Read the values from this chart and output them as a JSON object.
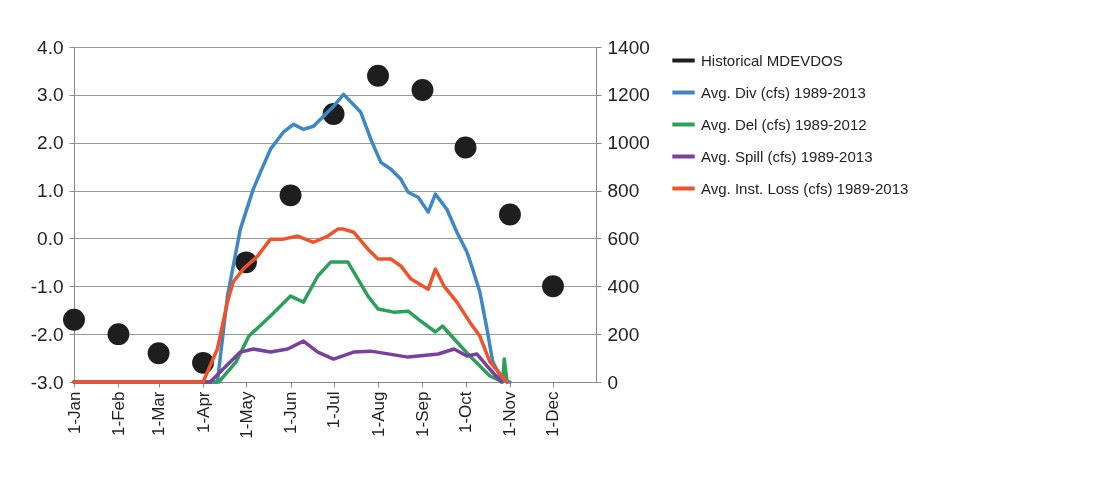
{
  "chart_data": {
    "type": "line",
    "x": [
      "--01-01",
      "--02-01",
      "--03-01",
      "--04-01",
      "--05-01",
      "--06-01",
      "--07-01",
      "--08-01",
      "--09-01",
      "--10-01",
      "--11-01",
      "--12-01"
    ],
    "xlim": [
      "--01-01",
      "--12-31"
    ],
    "xticks": [
      {
        "value": "--01-01",
        "label": "1-Jan"
      },
      {
        "value": "--02-01",
        "label": "1-Feb"
      },
      {
        "value": "--03-01",
        "label": "1-Mar"
      },
      {
        "value": "--04-01",
        "label": "1-Apr"
      },
      {
        "value": "--05-01",
        "label": "1-May"
      },
      {
        "value": "--06-01",
        "label": "1-Jun"
      },
      {
        "value": "--07-01",
        "label": "1-Jul"
      },
      {
        "value": "--08-01",
        "label": "1-Aug"
      },
      {
        "value": "--09-01",
        "label": "1-Sep"
      },
      {
        "value": "--10-01",
        "label": "1-Oct"
      },
      {
        "value": "--11-01",
        "label": "1-Nov"
      },
      {
        "value": "--12-01",
        "label": "1-Dec"
      }
    ],
    "ylim": [
      -3,
      4
    ],
    "yticks": [
      {
        "value": 4,
        "label": "4.0"
      },
      {
        "value": 3,
        "label": "3.0"
      },
      {
        "value": 2,
        "label": "2.0"
      },
      {
        "value": 1,
        "label": "1.0"
      },
      {
        "value": 0,
        "label": "0.0"
      },
      {
        "value": -1,
        "label": "-1.0"
      },
      {
        "value": -2,
        "label": "-2.0"
      },
      {
        "value": -3,
        "label": "-3.0"
      }
    ],
    "y2lim": [
      0,
      1400
    ],
    "y2ticks": [
      0,
      200,
      400,
      600,
      800,
      1000,
      1200,
      1400
    ],
    "grid": "y",
    "legend": "right",
    "line_style": "solid",
    "series": [
      {
        "name": "Historical MDEVDOS",
        "type": "scatter",
        "marker": "circle",
        "color": "#1e1e1e",
        "values": [
          -1.7,
          -2.0,
          -2.4,
          -2.6,
          -0.5,
          0.9,
          2.6,
          3.4,
          3.1,
          1.9,
          0.5,
          -1.0
        ]
      },
      {
        "name": "Avg. Div (cfs) 1989-2013",
        "axis": "y2",
        "color": "#3d87c6",
        "x": [
          "--01-01",
          "--04-11",
          "--04-18",
          "--04-27",
          "--05-06",
          "--05-11",
          "--05-18",
          "--05-27",
          "--06-03",
          "--06-10",
          "--06-17",
          "--06-24",
          "--07-01",
          "--07-08",
          "--07-20",
          "--07-27",
          "--08-03",
          "--08-10",
          "--08-17",
          "--08-22",
          "--08-29",
          "--09-05",
          "--09-10",
          "--09-18",
          "--09-25",
          "--10-02",
          "--10-06",
          "--10-11",
          "--10-16",
          "--10-20",
          "--10-27",
          "--11-01"
        ],
        "values": [
          0,
          0,
          359,
          639,
          806,
          877,
          973,
          1044,
          1077,
          1056,
          1069,
          1111,
          1152,
          1202,
          1127,
          1014,
          918,
          889,
          847,
          793,
          772,
          710,
          785,
          722,
          626,
          543,
          472,
          376,
          221,
          84,
          4,
          0
        ]
      },
      {
        "name": "Avg. Del (cfs) 1989-2012",
        "axis": "y2",
        "color": "#2ca05a",
        "x": [
          "--01-01",
          "--04-12",
          "--04-24",
          "--05-03",
          "--05-18",
          "--06-01",
          "--06-10",
          "--06-20",
          "--06-29",
          "--07-11",
          "--07-25",
          "--08-01",
          "--08-12",
          "--08-22",
          "--08-29",
          "--09-10",
          "--09-15",
          "--09-25",
          "--10-04",
          "--10-18",
          "--10-27",
          "--10-28",
          "--10-30"
        ],
        "values": [
          0,
          0,
          84,
          192,
          276,
          359,
          334,
          443,
          501,
          501,
          359,
          305,
          292,
          296,
          263,
          209,
          234,
          167,
          109,
          25,
          0,
          96,
          0
        ]
      },
      {
        "name": "Avg. Spill (cfs) 1989-2013",
        "axis": "y2",
        "color": "#7b3f9e",
        "x": [
          "--01-01",
          "--04-06",
          "--04-15",
          "--04-27",
          "--05-06",
          "--05-18",
          "--05-30",
          "--06-10",
          "--06-20",
          "--07-01",
          "--07-15",
          "--07-27",
          "--08-22",
          "--09-12",
          "--09-23",
          "--10-02",
          "--10-09",
          "--10-16",
          "--10-26"
        ],
        "values": [
          0,
          0,
          54,
          125,
          138,
          125,
          138,
          171,
          125,
          96,
          125,
          129,
          104,
          117,
          138,
          109,
          117,
          67,
          0
        ]
      },
      {
        "name": "Avg. Inst. Loss (cfs) 1989-2013",
        "axis": "y2",
        "color": "#f0532a",
        "x": [
          "--01-01",
          "--04-01",
          "--04-11",
          "--04-18",
          "--04-22",
          "--04-29",
          "--05-09",
          "--05-18",
          "--05-27",
          "--06-06",
          "--06-17",
          "--06-27",
          "--07-04",
          "--07-08",
          "--07-15",
          "--07-25",
          "--08-01",
          "--08-10",
          "--08-17",
          "--08-24",
          "--09-05",
          "--09-10",
          "--09-16",
          "--09-25",
          "--10-04",
          "--10-11",
          "--10-18",
          "--10-30"
        ],
        "values": [
          0,
          0,
          138,
          334,
          418,
          472,
          526,
          597,
          597,
          610,
          584,
          610,
          639,
          639,
          626,
          555,
          514,
          514,
          484,
          430,
          388,
          472,
          401,
          334,
          250,
          192,
          84,
          0
        ]
      }
    ]
  }
}
